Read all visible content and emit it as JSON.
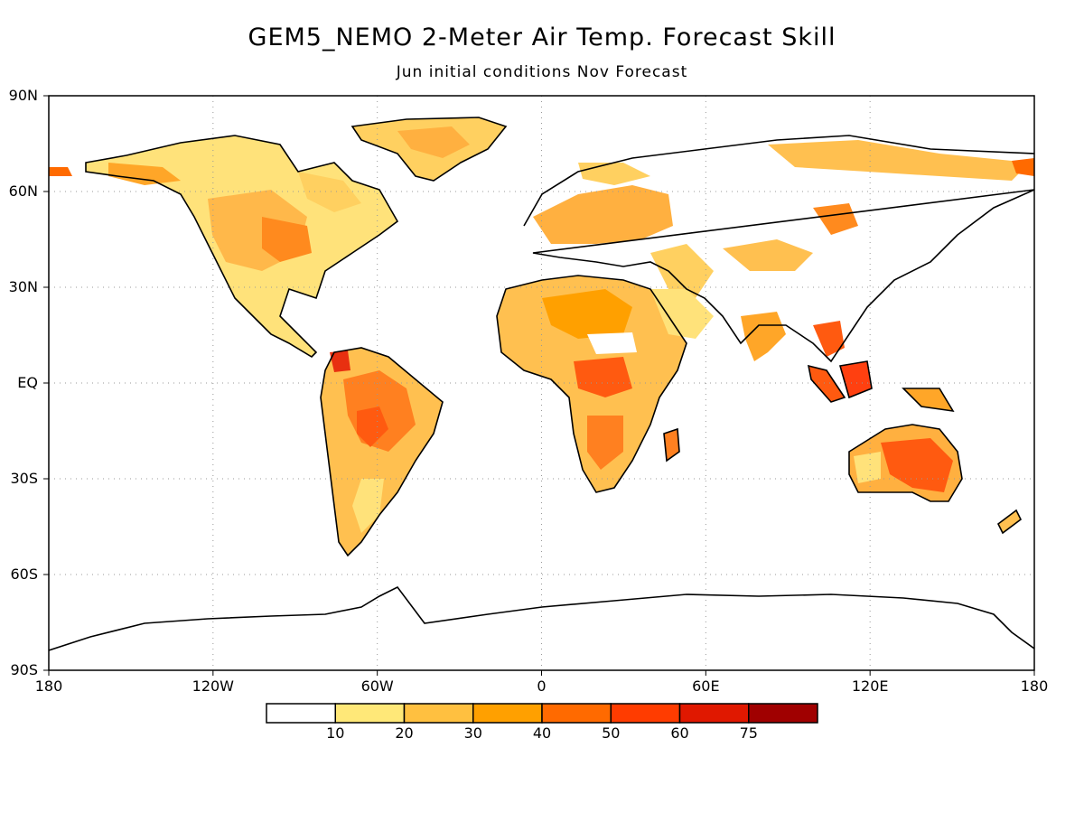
{
  "title": "GEM5_NEMO 2-Meter Air Temp. Forecast Skill",
  "subtitle": "Jun initial conditions   Nov Forecast",
  "axes": {
    "lat_labels": [
      "90N",
      "60N",
      "30N",
      "EQ",
      "30S",
      "60S",
      "90S"
    ],
    "lat_values": [
      90,
      60,
      30,
      0,
      -30,
      -60,
      -90
    ],
    "lon_labels": [
      "180",
      "120W",
      "60W",
      "0",
      "60E",
      "120E",
      "180"
    ],
    "lon_values": [
      -180,
      -120,
      -60,
      0,
      60,
      120,
      180
    ]
  },
  "colorbar": {
    "labels": [
      "10",
      "20",
      "30",
      "40",
      "50",
      "60",
      "75"
    ],
    "colors": [
      "#ffffff",
      "#ffe878",
      "#ffc040",
      "#ffa000",
      "#ff6a00",
      "#ff3c00",
      "#e01800",
      "#a00000"
    ]
  },
  "colors": {
    "land_outline": "#000000",
    "grid": "#999999"
  }
}
